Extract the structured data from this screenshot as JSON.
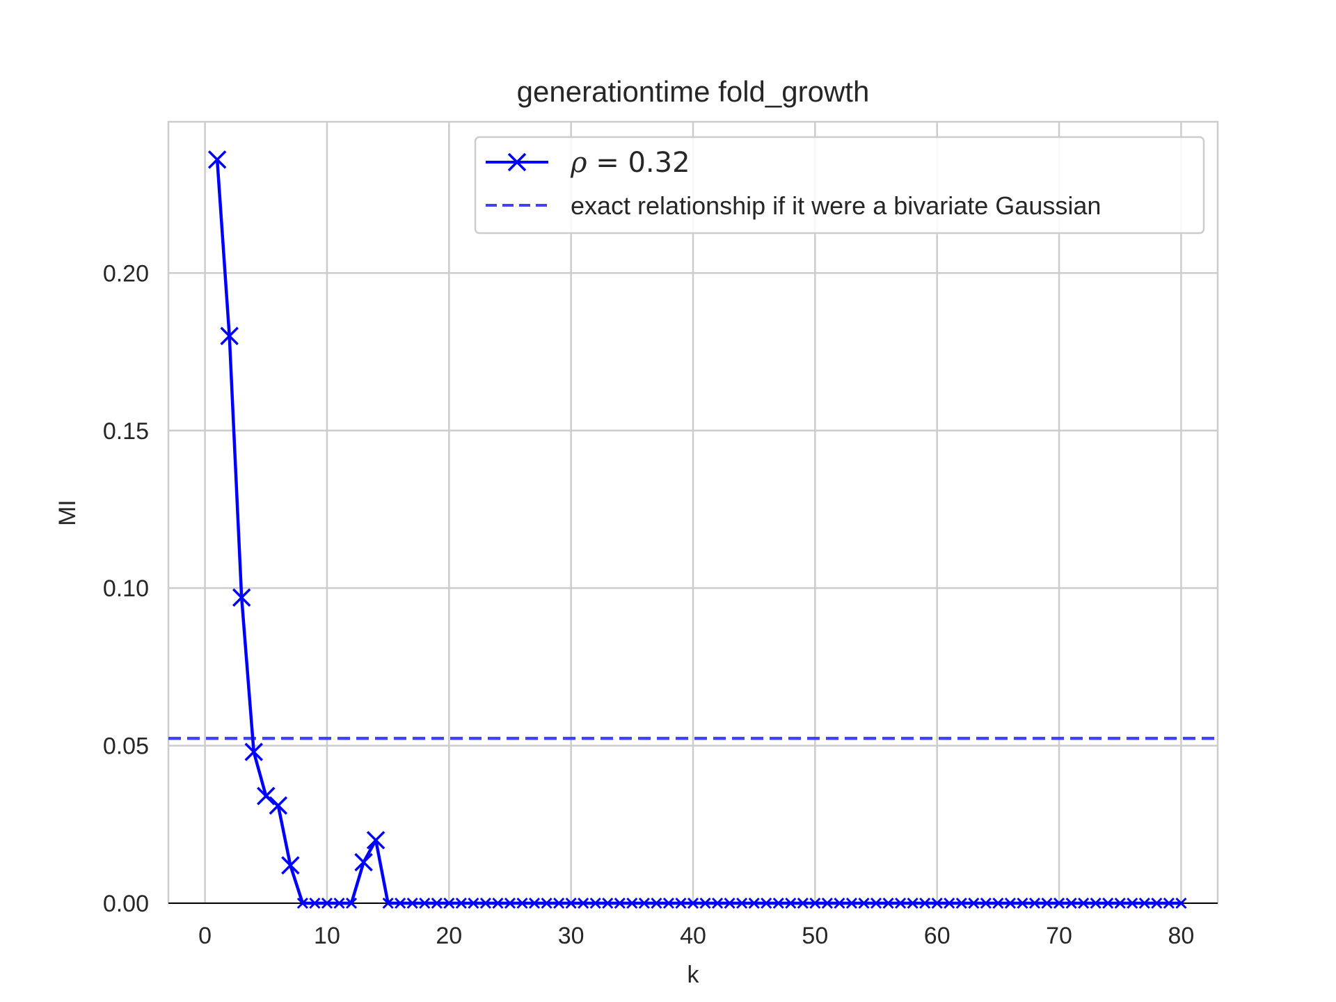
{
  "chart_data": {
    "type": "line",
    "title": "generationtime fold_growth",
    "xlabel": "k",
    "ylabel": "MI",
    "xlim": [
      -3,
      83
    ],
    "ylim": [
      0,
      0.248
    ],
    "xticks": [
      0,
      10,
      20,
      30,
      40,
      50,
      60,
      70,
      80
    ],
    "xtick_labels": [
      "0",
      "10",
      "20",
      "30",
      "40",
      "50",
      "60",
      "70",
      "80"
    ],
    "yticks": [
      0.0,
      0.05,
      0.1,
      0.15,
      0.2
    ],
    "ytick_labels": [
      "0.00",
      "0.05",
      "0.10",
      "0.15",
      "0.20"
    ],
    "grid": true,
    "legend_position": "top-right",
    "series": [
      {
        "name": "ρ = 0.32",
        "legend_symbol": "ρ",
        "legend_value": " = 0.32",
        "color": "#0000ff",
        "marker": "x",
        "line_style": "solid",
        "x": [
          1,
          2,
          3,
          4,
          5,
          6,
          7,
          8,
          9,
          10,
          11,
          12,
          13,
          14,
          15,
          16,
          17,
          18,
          19,
          20,
          21,
          22,
          23,
          24,
          25,
          26,
          27,
          28,
          29,
          30,
          31,
          32,
          33,
          34,
          35,
          36,
          37,
          38,
          39,
          40,
          41,
          42,
          43,
          44,
          45,
          46,
          47,
          48,
          49,
          50,
          51,
          52,
          53,
          54,
          55,
          56,
          57,
          58,
          59,
          60,
          61,
          62,
          63,
          64,
          65,
          66,
          67,
          68,
          69,
          70,
          71,
          72,
          73,
          74,
          75,
          76,
          77,
          78,
          79,
          80
        ],
        "y": [
          0.236,
          0.18,
          0.097,
          0.048,
          0.034,
          0.031,
          0.012,
          0,
          0,
          0,
          0,
          0,
          0.013,
          0.02,
          0,
          0,
          0,
          0,
          0,
          0,
          0,
          0,
          0,
          0,
          0,
          0,
          0,
          0,
          0,
          0,
          0,
          0,
          0,
          0,
          0,
          0,
          0,
          0,
          0,
          0,
          0,
          0,
          0,
          0,
          0,
          0,
          0,
          0,
          0,
          0,
          0,
          0,
          0,
          0,
          0,
          0,
          0,
          0,
          0,
          0,
          0,
          0,
          0,
          0,
          0,
          0,
          0,
          0,
          0,
          0,
          0,
          0,
          0,
          0,
          0,
          0,
          0,
          0,
          0,
          0
        ]
      },
      {
        "name": "exact relationship if it were a bivariate Gaussian",
        "color": "#4040ff",
        "line_style": "dashed",
        "type": "hline",
        "y": 0.0523
      }
    ]
  }
}
